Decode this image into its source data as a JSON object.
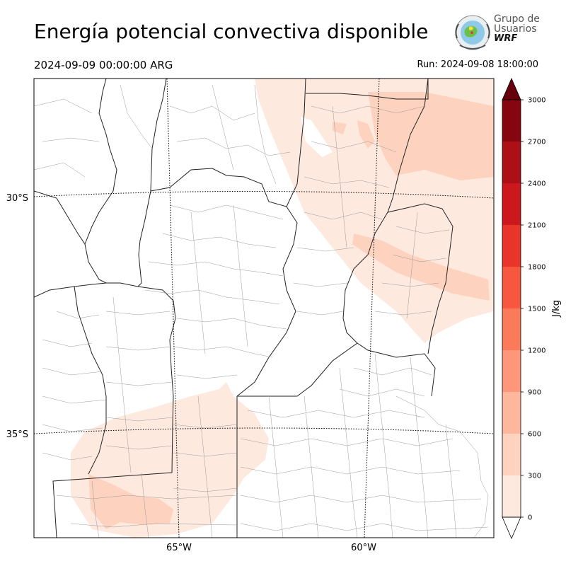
{
  "header": {
    "title": "Energía potencial convectiva disponible",
    "valid_time": "2024-09-09 00:00:00 ARG",
    "run_time": "Run: 2024-09-08 18:00:00"
  },
  "logo": {
    "line1": "Grupo de",
    "line2": "Usuarios",
    "line3": "WRF"
  },
  "map": {
    "lat_labels": [
      "30°S",
      "35°S"
    ],
    "lon_labels": [
      "65°W",
      "60°W"
    ]
  },
  "colorbar": {
    "unit_label": "J/kg",
    "ticks": [
      0,
      300,
      600,
      900,
      1200,
      1500,
      1800,
      2100,
      2400,
      2700,
      3000
    ],
    "levels": [
      {
        "from": 0,
        "to": 300,
        "color": "#fee9df"
      },
      {
        "from": 300,
        "to": 600,
        "color": "#fdd2bf"
      },
      {
        "from": 600,
        "to": 900,
        "color": "#fcb79c"
      },
      {
        "from": 900,
        "to": 1200,
        "color": "#fc9879"
      },
      {
        "from": 1200,
        "to": 1500,
        "color": "#fb7a5a"
      },
      {
        "from": 1500,
        "to": 1800,
        "color": "#f6573e"
      },
      {
        "from": 1800,
        "to": 2100,
        "color": "#e83429"
      },
      {
        "from": 2100,
        "to": 2400,
        "color": "#cb181d"
      },
      {
        "from": 2400,
        "to": 2700,
        "color": "#ac1016"
      },
      {
        "from": 2700,
        "to": 3000,
        "color": "#850610"
      }
    ],
    "under_color": "#ffffff",
    "over_color": "#67000d"
  }
}
